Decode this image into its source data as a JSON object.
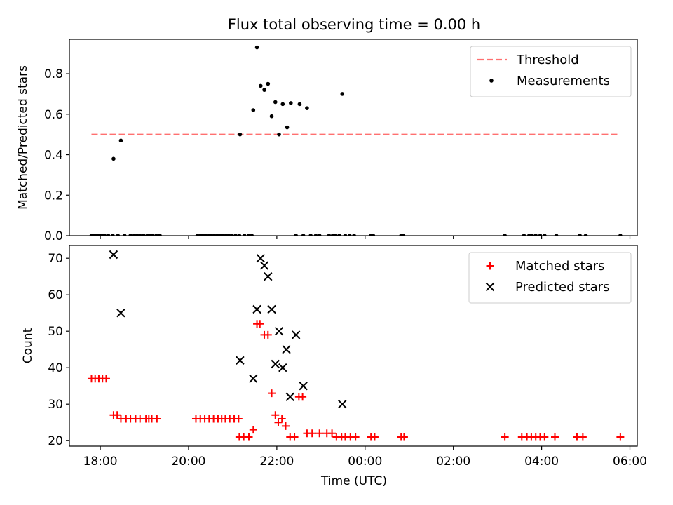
{
  "figure": {
    "title": "Flux total observing time = 0.00 h",
    "xlabel": "Time (UTC)"
  },
  "chart_data": [
    {
      "type": "scatter",
      "ylabel": "Matched/Predicted stars",
      "xlim": [
        "17:18",
        "06:10"
      ],
      "ylim": [
        0,
        0.97
      ],
      "yticks": [
        0.0,
        0.2,
        0.4,
        0.6,
        0.8
      ],
      "ytick_labels": [
        "0.0",
        "0.2",
        "0.4",
        "0.6",
        "0.8"
      ],
      "grid": false,
      "legend_position": "top-right",
      "threshold": {
        "name": "Threshold",
        "value": 0.5,
        "x_range": [
          "17:48",
          "05:47"
        ],
        "color": "#ff7070",
        "style": "dashed"
      },
      "series": [
        {
          "name": "Measurements",
          "color": "#000000",
          "marker": "dot",
          "points": [
            [
              "17:48",
              0
            ],
            [
              "17:51",
              0
            ],
            [
              "17:53",
              0
            ],
            [
              "17:56",
              0
            ],
            [
              "17:58",
              0
            ],
            [
              "18:01",
              0
            ],
            [
              "18:04",
              0
            ],
            [
              "18:06",
              0
            ],
            [
              "18:11",
              0
            ],
            [
              "18:17",
              0
            ],
            [
              "18:18",
              0.38
            ],
            [
              "18:24",
              0
            ],
            [
              "18:28",
              0.47
            ],
            [
              "18:33",
              0
            ],
            [
              "18:41",
              0
            ],
            [
              "18:46",
              0
            ],
            [
              "18:50",
              0
            ],
            [
              "18:54",
              0
            ],
            [
              "18:59",
              0
            ],
            [
              "19:04",
              0
            ],
            [
              "19:07",
              0
            ],
            [
              "19:11",
              0
            ],
            [
              "19:16",
              0
            ],
            [
              "19:21",
              0
            ],
            [
              "20:12",
              0
            ],
            [
              "20:16",
              0
            ],
            [
              "20:19",
              0
            ],
            [
              "20:23",
              0
            ],
            [
              "20:27",
              0
            ],
            [
              "20:31",
              0
            ],
            [
              "20:35",
              0
            ],
            [
              "20:39",
              0
            ],
            [
              "20:43",
              0
            ],
            [
              "20:47",
              0
            ],
            [
              "20:51",
              0
            ],
            [
              "20:55",
              0
            ],
            [
              "20:59",
              0
            ],
            [
              "21:04",
              0
            ],
            [
              "21:09",
              0
            ],
            [
              "21:10",
              0.5
            ],
            [
              "21:16",
              0
            ],
            [
              "21:22",
              0
            ],
            [
              "21:26",
              0
            ],
            [
              "21:28",
              0.62
            ],
            [
              "21:33",
              0.93
            ],
            [
              "21:38",
              0.74
            ],
            [
              "21:43",
              0.72
            ],
            [
              "21:48",
              0.75
            ],
            [
              "21:53",
              0.59
            ],
            [
              "21:58",
              0.66
            ],
            [
              "22:03",
              0.5
            ],
            [
              "22:08",
              0.65
            ],
            [
              "22:14",
              0.535
            ],
            [
              "22:19",
              0.655
            ],
            [
              "22:26",
              0
            ],
            [
              "22:31",
              0.65
            ],
            [
              "22:36",
              0
            ],
            [
              "22:41",
              0.63
            ],
            [
              "22:46",
              0
            ],
            [
              "22:53",
              0
            ],
            [
              "22:58",
              0
            ],
            [
              "23:11",
              0
            ],
            [
              "23:16",
              0
            ],
            [
              "23:20",
              0
            ],
            [
              "23:25",
              0
            ],
            [
              "23:29",
              0.7
            ],
            [
              "23:33",
              0
            ],
            [
              "23:39",
              0
            ],
            [
              "23:45",
              0
            ],
            [
              "00:08",
              0
            ],
            [
              "00:11",
              0
            ],
            [
              "00:49",
              0
            ],
            [
              "00:52",
              0
            ],
            [
              "03:10",
              0
            ],
            [
              "03:36",
              0
            ],
            [
              "03:43",
              0
            ],
            [
              "03:47",
              0
            ],
            [
              "03:52",
              0
            ],
            [
              "03:58",
              0
            ],
            [
              "04:04",
              0
            ],
            [
              "04:20",
              0
            ],
            [
              "04:52",
              0
            ],
            [
              "05:00",
              0
            ],
            [
              "05:47",
              0
            ]
          ]
        }
      ]
    },
    {
      "type": "scatter",
      "ylabel": "Count",
      "xlim": [
        "17:18",
        "06:10"
      ],
      "ylim": [
        18.5,
        73.5
      ],
      "yticks": [
        20,
        30,
        40,
        50,
        60,
        70
      ],
      "ytick_labels": [
        "20",
        "30",
        "40",
        "50",
        "60",
        "70"
      ],
      "xticks": [
        "18:00",
        "20:00",
        "22:00",
        "00:00",
        "02:00",
        "04:00",
        "06:00"
      ],
      "xtick_labels": [
        "18:00",
        "20:00",
        "22:00",
        "00:00",
        "02:00",
        "04:00",
        "06:00"
      ],
      "grid": false,
      "legend_position": "top-right",
      "series": [
        {
          "name": "Matched stars",
          "color": "#ff0000",
          "marker": "plus",
          "points": [
            [
              "17:48",
              37
            ],
            [
              "17:53",
              37
            ],
            [
              "17:58",
              37
            ],
            [
              "18:03",
              37
            ],
            [
              "18:08",
              37
            ],
            [
              "18:18",
              27
            ],
            [
              "18:23",
              27
            ],
            [
              "18:28",
              26
            ],
            [
              "18:35",
              26
            ],
            [
              "18:41",
              26
            ],
            [
              "18:48",
              26
            ],
            [
              "18:54",
              26
            ],
            [
              "19:02",
              26
            ],
            [
              "19:06",
              26
            ],
            [
              "19:10",
              26
            ],
            [
              "19:17",
              26
            ],
            [
              "20:10",
              26
            ],
            [
              "20:16",
              26
            ],
            [
              "20:22",
              26
            ],
            [
              "20:28",
              26
            ],
            [
              "20:34",
              26
            ],
            [
              "20:40",
              26
            ],
            [
              "20:45",
              26
            ],
            [
              "20:50",
              26
            ],
            [
              "20:56",
              26
            ],
            [
              "21:02",
              26
            ],
            [
              "21:08",
              26
            ],
            [
              "21:09",
              21
            ],
            [
              "21:15",
              21
            ],
            [
              "21:22",
              21
            ],
            [
              "21:28",
              23
            ],
            [
              "21:33",
              52
            ],
            [
              "21:37",
              52
            ],
            [
              "21:43",
              49
            ],
            [
              "21:48",
              49
            ],
            [
              "21:53",
              33
            ],
            [
              "21:58",
              27
            ],
            [
              "22:02",
              25
            ],
            [
              "22:07",
              26
            ],
            [
              "22:12",
              24
            ],
            [
              "22:18",
              21
            ],
            [
              "22:24",
              21
            ],
            [
              "22:30",
              32
            ],
            [
              "22:35",
              32
            ],
            [
              "22:41",
              22
            ],
            [
              "22:48",
              22
            ],
            [
              "22:58",
              22
            ],
            [
              "23:08",
              22
            ],
            [
              "23:15",
              22
            ],
            [
              "23:21",
              21
            ],
            [
              "23:28",
              21
            ],
            [
              "23:33",
              21
            ],
            [
              "23:40",
              21
            ],
            [
              "23:47",
              21
            ],
            [
              "00:08",
              21
            ],
            [
              "00:13",
              21
            ],
            [
              "00:49",
              21
            ],
            [
              "00:53",
              21
            ],
            [
              "03:10",
              21
            ],
            [
              "03:33",
              21
            ],
            [
              "03:40",
              21
            ],
            [
              "03:46",
              21
            ],
            [
              "03:52",
              21
            ],
            [
              "03:58",
              21
            ],
            [
              "04:04",
              21
            ],
            [
              "04:18",
              21
            ],
            [
              "04:48",
              21
            ],
            [
              "04:56",
              21
            ],
            [
              "05:47",
              21
            ]
          ]
        },
        {
          "name": "Predicted stars",
          "color": "#000000",
          "marker": "x",
          "points": [
            [
              "18:18",
              71
            ],
            [
              "18:28",
              55
            ],
            [
              "21:10",
              42
            ],
            [
              "21:28",
              37
            ],
            [
              "21:33",
              56
            ],
            [
              "21:38",
              70
            ],
            [
              "21:43",
              68
            ],
            [
              "21:48",
              65
            ],
            [
              "21:53",
              56
            ],
            [
              "21:58",
              41
            ],
            [
              "22:03",
              50
            ],
            [
              "22:08",
              40
            ],
            [
              "22:13",
              45
            ],
            [
              "22:18",
              32
            ],
            [
              "22:26",
              49
            ],
            [
              "22:36",
              35
            ],
            [
              "23:29",
              30
            ]
          ]
        }
      ]
    }
  ]
}
